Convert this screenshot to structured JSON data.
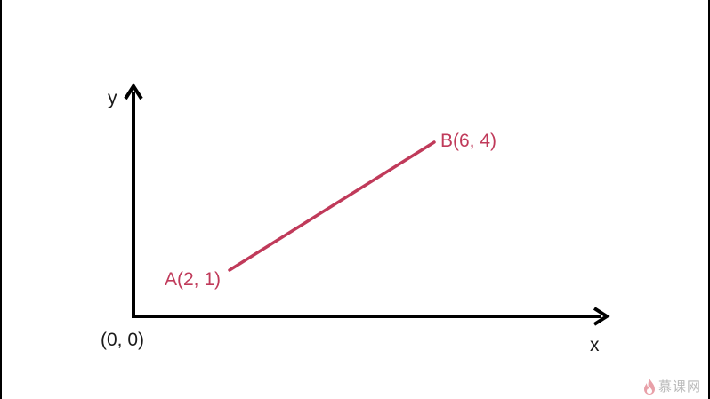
{
  "diagram": {
    "axis_y_label": "y",
    "axis_x_label": "x",
    "origin_label": "(0, 0)",
    "point_a_label": "A(2, 1)",
    "point_b_label": "B(6, 4)"
  },
  "colors": {
    "axis": "#000000",
    "segment": "#c03a5a",
    "text": "#1a1a1a",
    "watermark": "#b9b9b9"
  },
  "watermark": {
    "text": "慕课网",
    "icon": "flame-icon"
  }
}
